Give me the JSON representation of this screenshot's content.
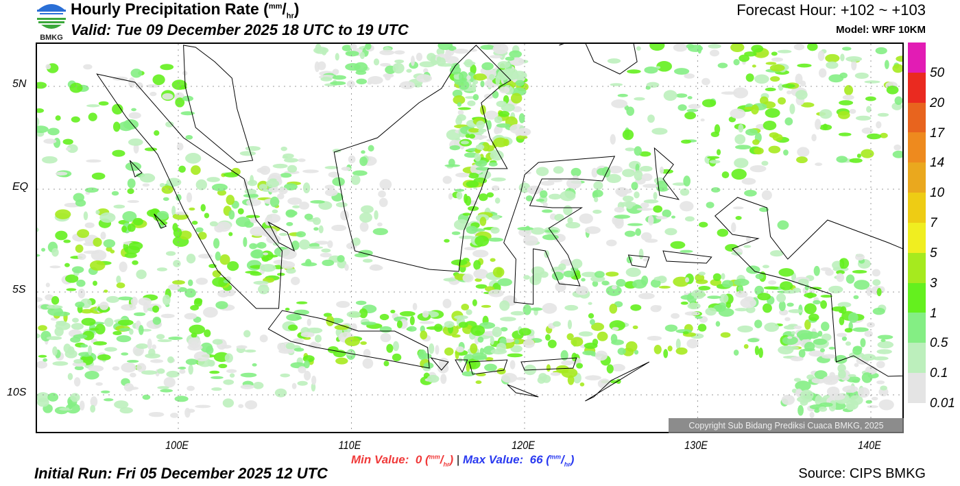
{
  "header": {
    "title": "Hourly Precipitation Rate (",
    "unit_num": "mm",
    "unit_sep": "/",
    "unit_den": "hr",
    "title_end": ")",
    "valid": "Valid: Tue 09 December 2025 18 UTC to 19 UTC",
    "forecast_hour": "Forecast Hour: +102 ~ +103",
    "model": "Model: WRF 10KM",
    "logo_text": "BMKG"
  },
  "map": {
    "lat_labels": [
      "5N",
      "EQ",
      "5S",
      "10S"
    ],
    "lon_labels": [
      "100E",
      "110E",
      "120E",
      "130E",
      "140E"
    ],
    "copyright": "Copyright Sub Bidang Prediksi Cuaca BMKG, 2025"
  },
  "colorbar": {
    "labels": [
      "50",
      "20",
      "17",
      "14",
      "10",
      "7",
      "5",
      "3",
      "1",
      "0.5",
      "0.1",
      "0.01"
    ],
    "colors": [
      "#e21cb4",
      "#ea2a20",
      "#e8641e",
      "#ee8a1e",
      "#eaa81e",
      "#eecc14",
      "#f0ee20",
      "#a6ea1e",
      "#64f01e",
      "#84ee84",
      "#bcefbc",
      "#e4e4e4"
    ]
  },
  "footer": {
    "min_label": "Min Value:",
    "min_value": "0",
    "max_label": "Max Value:",
    "max_value": "66",
    "unit_num": "mm",
    "unit_den": "hr",
    "sep": "|",
    "initial_run": "Initial Run: Fri 05 December 2025 12 UTC",
    "source": "Source: CIPS BMKG"
  }
}
